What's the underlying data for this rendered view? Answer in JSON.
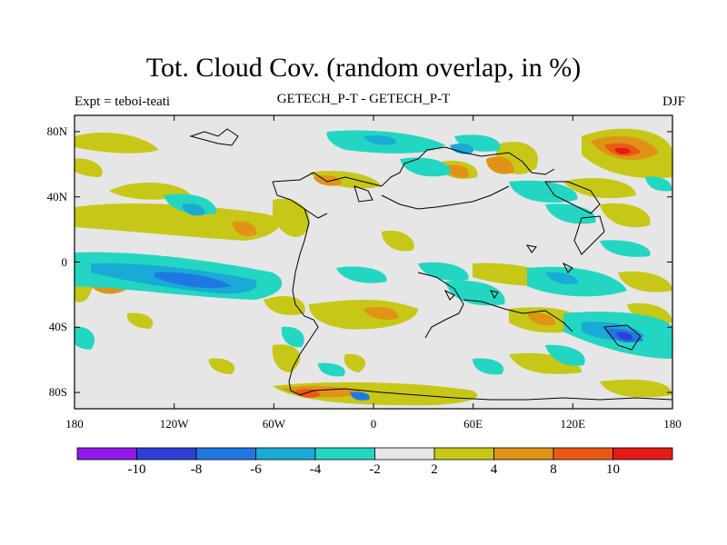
{
  "header": {
    "title": "Tot. Cloud Cov. (random overlap, in %)",
    "left_label": "Expt = teboi-teati",
    "center_label": "GETECH_P-T - GETECH_P-T",
    "season": "DJF"
  },
  "map": {
    "lon_range": [
      -180,
      180
    ],
    "lat_range": [
      -90,
      90
    ],
    "y_ticks": [
      {
        "lat": 80,
        "label": "80N"
      },
      {
        "lat": 40,
        "label": "40N"
      },
      {
        "lat": 0,
        "label": "0"
      },
      {
        "lat": -40,
        "label": "40S"
      },
      {
        "lat": -80,
        "label": "80S"
      }
    ],
    "x_ticks": [
      {
        "lon": -180,
        "label": "180"
      },
      {
        "lon": -120,
        "label": "120W"
      },
      {
        "lon": -60,
        "label": "60W"
      },
      {
        "lon": 0,
        "label": "0"
      },
      {
        "lon": 60,
        "label": "60E"
      },
      {
        "lon": 120,
        "label": "120E"
      },
      {
        "lon": 180,
        "label": "180"
      }
    ],
    "background_color": "#e6e6e6"
  },
  "colorbar": {
    "colors": [
      "#8f1ae8",
      "#2f3fd6",
      "#1f78e2",
      "#19aad6",
      "#23d6c2",
      "#e6e6e6",
      "#c7c718",
      "#e09316",
      "#ea5a14",
      "#e31a16"
    ],
    "labels": [
      {
        "boundary": 1,
        "text": "-10"
      },
      {
        "boundary": 2,
        "text": "-8"
      },
      {
        "boundary": 3,
        "text": "-6"
      },
      {
        "boundary": 4,
        "text": "-4"
      },
      {
        "boundary": 5,
        "text": "-2"
      },
      {
        "boundary": 6,
        "text": "2"
      },
      {
        "boundary": 7,
        "text": "4"
      },
      {
        "boundary": 8,
        "text": "8"
      },
      {
        "boundary": 9,
        "text": "10"
      }
    ]
  }
}
